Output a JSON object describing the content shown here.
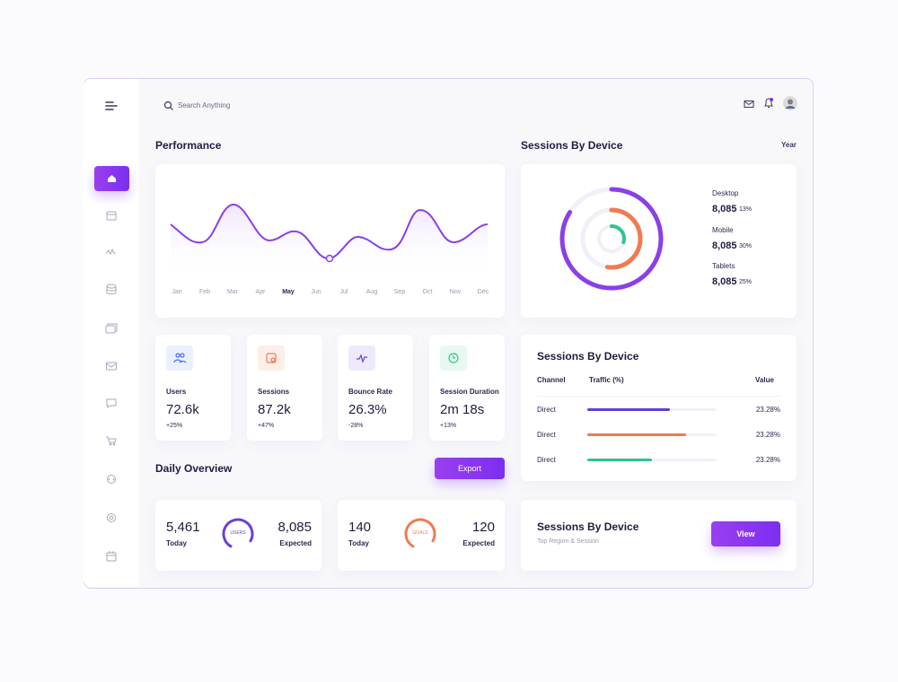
{
  "search": {
    "placeholder": "Search Anything"
  },
  "performance": {
    "title": "Performance",
    "months": [
      "Jan",
      "Feb",
      "Mar",
      "Apr",
      "May",
      "Jun",
      "Jul",
      "Aug",
      "Sep",
      "Oct",
      "Nov",
      "Dec"
    ]
  },
  "sessions_by_device": {
    "title": "Sessions By Device",
    "period": "Year",
    "devices": [
      {
        "name": "Desktop",
        "value": "8,085",
        "share": "13%"
      },
      {
        "name": "Mobile",
        "value": "8,085",
        "share": "30%"
      },
      {
        "name": "Tablets",
        "value": "8,085",
        "share": "25%"
      }
    ]
  },
  "stats": [
    {
      "label": "Users",
      "value": "72.6k",
      "change": "+25%"
    },
    {
      "label": "Sessions",
      "value": "87.2k",
      "change": "+47%"
    },
    {
      "label": "Bounce Rate",
      "value": "26.3%",
      "change": "-28%"
    },
    {
      "label": "Session Duration",
      "value": "2m 18s",
      "change": "+13%"
    }
  ],
  "daily_overview": {
    "title": "Daily Overview",
    "button": "Export",
    "cards": [
      {
        "today": "5,461",
        "today_label": "Today",
        "ring_label": "USERS",
        "expected": "8,085",
        "expected_label": "Expected"
      },
      {
        "today": "140",
        "today_label": "Today",
        "ring_label": "GOALS",
        "expected": "120",
        "expected_label": "Expected"
      }
    ]
  },
  "traffic_table": {
    "title": "Sessions By Device",
    "columns": [
      "Channel",
      "Traffic (%)",
      "Value"
    ],
    "rows": [
      [
        "Direct",
        "23.28%"
      ],
      [
        "Direct",
        "23.28%"
      ],
      [
        "Direct",
        "23.28%"
      ]
    ]
  },
  "region_card": {
    "title": "Sessions By Device",
    "subtitle": "Top Region & Session",
    "button": "View"
  }
}
